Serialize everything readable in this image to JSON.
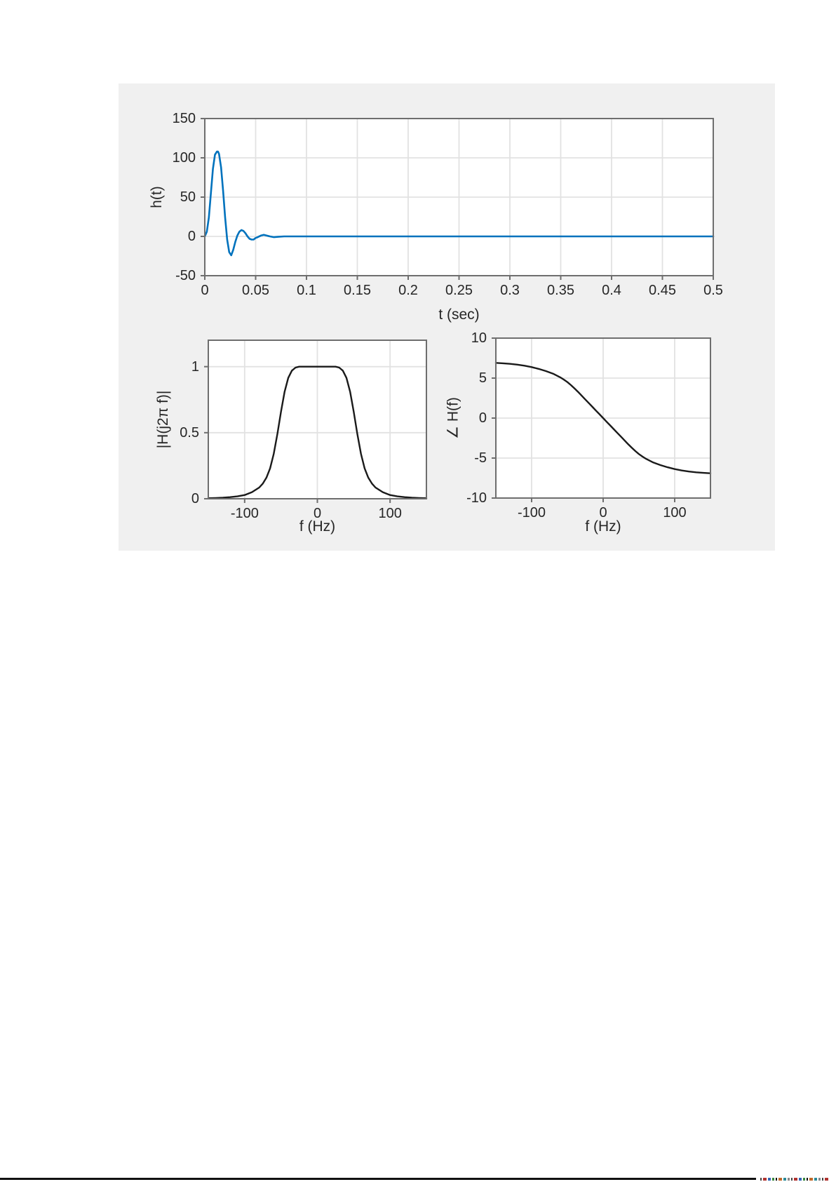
{
  "figure": {
    "colors": {
      "panel_bg": "#f0f0f0",
      "axes_bg": "#ffffff",
      "grid": "#e2e2e2",
      "frame": "#6e6e6e",
      "text": "#262626",
      "bottom_rule": "#111111"
    }
  },
  "footer": {
    "artifact_colors": [
      "#444444",
      "#b03330",
      "#3465b5",
      "#3a8a3f",
      "#111111",
      "#c06a2a",
      "#2a8a99",
      "#888888"
    ]
  },
  "chart_data": [
    {
      "type": "line",
      "title": "",
      "xlabel": "t (sec)",
      "ylabel": "h(t)",
      "xlim": [
        0,
        0.5
      ],
      "ylim": [
        -50,
        150
      ],
      "grid": true,
      "legend": null,
      "line_color": "#0072BD",
      "line_width": 2.6,
      "xticks": [
        0,
        0.05,
        0.1,
        0.15,
        0.2,
        0.25,
        0.3,
        0.35,
        0.4,
        0.45,
        0.5
      ],
      "xtick_labels": [
        "0",
        "0.05",
        "0.1",
        "0.15",
        "0.2",
        "0.25",
        "0.3",
        "0.35",
        "0.4",
        "0.45",
        "0.5"
      ],
      "yticks": [
        -50,
        0,
        50,
        100,
        150
      ],
      "ytick_labels": [
        "-50",
        "0",
        "50",
        "100",
        "150"
      ],
      "x": [
        0,
        0.002,
        0.004,
        0.006,
        0.008,
        0.01,
        0.012,
        0.013,
        0.014,
        0.016,
        0.018,
        0.02,
        0.022,
        0.024,
        0.026,
        0.028,
        0.03,
        0.032,
        0.034,
        0.036,
        0.038,
        0.04,
        0.042,
        0.044,
        0.046,
        0.048,
        0.05,
        0.052,
        0.055,
        0.058,
        0.061,
        0.064,
        0.068,
        0.072,
        0.078,
        0.085,
        0.095,
        0.11,
        0.15,
        0.2,
        0.3,
        0.4,
        0.5
      ],
      "y": [
        0,
        6,
        24,
        55,
        86,
        104,
        108,
        108,
        105,
        88,
        58,
        24,
        -4,
        -20,
        -24,
        -17,
        -7,
        1,
        6,
        8,
        7,
        4,
        0,
        -3,
        -4,
        -4,
        -2,
        -1,
        1,
        2,
        1,
        0,
        -1,
        -0.5,
        0,
        0,
        0,
        0,
        0,
        0,
        0,
        0,
        0
      ]
    },
    {
      "type": "line",
      "title": "",
      "xlabel": "f (Hz)",
      "ylabel": "|H(j2π f)|",
      "xlim": [
        -150,
        150
      ],
      "ylim": [
        0,
        1.2
      ],
      "grid": true,
      "legend": null,
      "line_color": "#1a1a1a",
      "line_width": 2.4,
      "xticks": [
        -100,
        0,
        100
      ],
      "xtick_labels": [
        "-100",
        "0",
        "100"
      ],
      "yticks": [
        0,
        0.5,
        1
      ],
      "ytick_labels": [
        "0",
        "0.5",
        "1"
      ],
      "x": [
        -150,
        -140,
        -130,
        -120,
        -110,
        -100,
        -90,
        -80,
        -75,
        -70,
        -65,
        -60,
        -55,
        -50,
        -45,
        -40,
        -35,
        -30,
        -25,
        -20,
        -10,
        0,
        10,
        20,
        25,
        30,
        35,
        40,
        45,
        50,
        55,
        60,
        65,
        70,
        75,
        80,
        90,
        100,
        110,
        120,
        130,
        140,
        150
      ],
      "y": [
        0.004,
        0.006,
        0.008,
        0.012,
        0.018,
        0.028,
        0.05,
        0.085,
        0.115,
        0.16,
        0.23,
        0.34,
        0.49,
        0.66,
        0.81,
        0.915,
        0.97,
        0.993,
        1,
        1,
        1,
        1,
        1,
        1,
        1,
        0.993,
        0.97,
        0.915,
        0.81,
        0.66,
        0.49,
        0.34,
        0.23,
        0.16,
        0.115,
        0.085,
        0.05,
        0.028,
        0.018,
        0.012,
        0.008,
        0.006,
        0.004
      ]
    },
    {
      "type": "line",
      "title": "",
      "xlabel": "f (Hz)",
      "ylabel": "∠ H(f)",
      "xlim": [
        -150,
        150
      ],
      "ylim": [
        -10,
        10
      ],
      "grid": true,
      "legend": null,
      "line_color": "#1a1a1a",
      "line_width": 2.4,
      "xticks": [
        -100,
        0,
        100
      ],
      "xtick_labels": [
        "-100",
        "0",
        "100"
      ],
      "yticks": [
        -10,
        -5,
        0,
        5,
        10
      ],
      "ytick_labels": [
        "-10",
        "-5",
        "0",
        "5",
        "10"
      ],
      "x": [
        -150,
        -140,
        -130,
        -120,
        -110,
        -100,
        -90,
        -80,
        -70,
        -60,
        -55,
        -50,
        -45,
        -40,
        -35,
        -30,
        -25,
        -20,
        -15,
        -10,
        -5,
        0,
        5,
        10,
        15,
        20,
        25,
        30,
        35,
        40,
        45,
        50,
        55,
        60,
        70,
        80,
        90,
        100,
        110,
        120,
        130,
        140,
        150
      ],
      "y": [
        6.9,
        6.85,
        6.78,
        6.68,
        6.55,
        6.38,
        6.15,
        5.88,
        5.55,
        5.1,
        4.82,
        4.5,
        4.12,
        3.7,
        3.27,
        2.8,
        2.33,
        1.87,
        1.4,
        0.93,
        0.47,
        0,
        -0.47,
        -0.93,
        -1.4,
        -1.87,
        -2.33,
        -2.8,
        -3.27,
        -3.7,
        -4.12,
        -4.5,
        -4.82,
        -5.1,
        -5.55,
        -5.88,
        -6.15,
        -6.38,
        -6.55,
        -6.68,
        -6.78,
        -6.85,
        -6.9
      ]
    }
  ]
}
